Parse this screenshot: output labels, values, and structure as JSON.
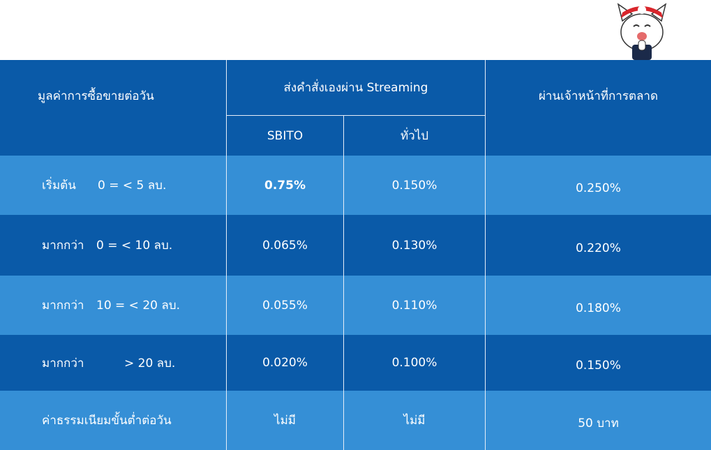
{
  "header": {
    "col1": "มูลค่าการซื้อขายต่อวัน",
    "col2": "ส่งคำสั่งเองผ่าน Streaming",
    "col2_sub1": "SBITO",
    "col2_sub2": "ทั่วไป",
    "col3": "ผ่านเจ้าหน้าที่การตลาด"
  },
  "rows": [
    {
      "label": "เริ่มต้น",
      "range": "0 = < 5 ลบ.",
      "sbito": "0.75%",
      "general": "0.150%",
      "agent": "0.250%"
    },
    {
      "label": "มากกว่า",
      "range": "0 = < 10 ลบ.",
      "sbito": "0.065%",
      "general": "0.130%",
      "agent": "0.220%"
    },
    {
      "label": "มากกว่า",
      "range": "10 = < 20 ลบ.",
      "sbito": "0.055%",
      "general": "0.110%",
      "agent": "0.180%"
    },
    {
      "label": "มากกว่า",
      "range": "> 20 ลบ.",
      "sbito": "0.020%",
      "general": "0.100%",
      "agent": "0.150%"
    }
  ],
  "minimum_fee": {
    "label": "ค่าธรรมเนียมขั้นต่ำต่อวัน",
    "sbito": "ไม่มี",
    "general": "ไม่มี",
    "agent": "50 บาท"
  },
  "colors": {
    "dark_blue": "#0a5aa8",
    "light_blue": "#358fd6",
    "grid": "#e6eef8"
  },
  "mascot_icon": "cat-mascot-icon"
}
